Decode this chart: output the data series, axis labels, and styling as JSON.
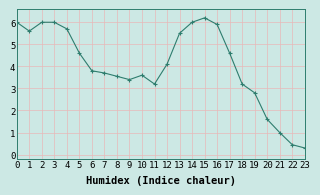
{
  "x": [
    0,
    1,
    2,
    3,
    4,
    5,
    6,
    7,
    8,
    9,
    10,
    11,
    12,
    13,
    14,
    15,
    16,
    17,
    18,
    19,
    20,
    21,
    22,
    23
  ],
  "y": [
    6.0,
    5.6,
    6.0,
    6.0,
    5.7,
    4.6,
    3.8,
    3.7,
    3.55,
    3.4,
    3.6,
    3.2,
    4.1,
    5.5,
    6.0,
    6.2,
    5.9,
    4.6,
    3.2,
    2.8,
    1.6,
    1.0,
    0.45,
    0.3
  ],
  "xlabel": "Humidex (Indice chaleur)",
  "xlim": [
    0,
    23
  ],
  "ylim": [
    -0.2,
    6.6
  ],
  "yticks": [
    0,
    1,
    2,
    3,
    4,
    5,
    6
  ],
  "xticks": [
    0,
    1,
    2,
    3,
    4,
    5,
    6,
    7,
    8,
    9,
    10,
    11,
    12,
    13,
    14,
    15,
    16,
    17,
    18,
    19,
    20,
    21,
    22,
    23
  ],
  "line_color": "#2e7d6e",
  "marker": "+",
  "marker_size": 3,
  "bg_color": "#cce8e4",
  "grid_color": "#e8b8b8",
  "xlabel_fontsize": 7.5,
  "tick_fontsize": 6.5
}
